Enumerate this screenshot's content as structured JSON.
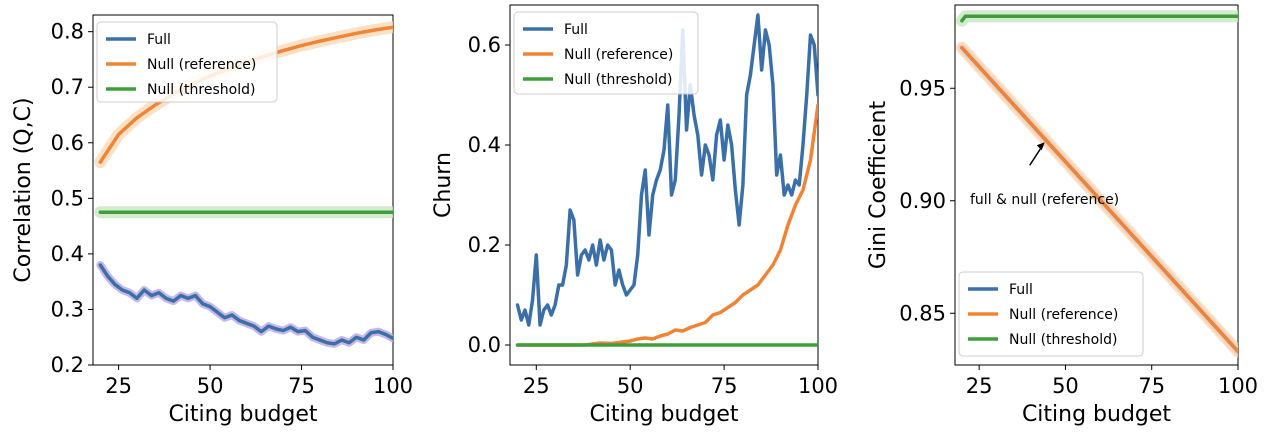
{
  "colors": {
    "full": "#3b6fa8",
    "null_reference": "#ef8436",
    "null_threshold": "#3f9e3b",
    "full_band": "#b9a6e2",
    "reference_band": "#f9d9b6",
    "threshold_band": "#c8e6c0"
  },
  "chart_data": [
    {
      "type": "line",
      "xlabel": "Citing budget",
      "ylabel": "Correlation (Q,C)",
      "xlim": [
        18,
        100
      ],
      "ylim": [
        0.2,
        0.83
      ],
      "xticks": [
        25,
        50,
        75,
        100
      ],
      "yticks": [
        0.2,
        0.3,
        0.4,
        0.5,
        0.6,
        0.7,
        0.8
      ],
      "ytick_labels": [
        "0.2",
        "0.3",
        "0.4",
        "0.5",
        "0.6",
        "0.7",
        "0.8"
      ],
      "grid": false,
      "legend_position": "upper-left",
      "series": [
        {
          "name": "Full",
          "key": "full",
          "band": true,
          "x": [
            20,
            22,
            24,
            26,
            28,
            30,
            32,
            34,
            36,
            38,
            40,
            42,
            44,
            46,
            48,
            50,
            52,
            54,
            56,
            58,
            60,
            62,
            64,
            66,
            68,
            70,
            72,
            74,
            76,
            78,
            80,
            82,
            84,
            86,
            88,
            90,
            92,
            94,
            96,
            98,
            100
          ],
          "y": [
            0.38,
            0.36,
            0.345,
            0.335,
            0.33,
            0.32,
            0.335,
            0.325,
            0.33,
            0.32,
            0.315,
            0.325,
            0.32,
            0.325,
            0.31,
            0.305,
            0.295,
            0.285,
            0.29,
            0.28,
            0.275,
            0.27,
            0.26,
            0.27,
            0.265,
            0.262,
            0.268,
            0.26,
            0.262,
            0.25,
            0.245,
            0.24,
            0.238,
            0.245,
            0.24,
            0.25,
            0.245,
            0.258,
            0.26,
            0.255,
            0.248
          ]
        },
        {
          "name": "Null (reference)",
          "key": "null_reference",
          "band": true,
          "x": [
            20,
            25,
            30,
            35,
            40,
            45,
            50,
            55,
            60,
            65,
            70,
            75,
            80,
            85,
            90,
            95,
            100
          ],
          "y": [
            0.565,
            0.615,
            0.645,
            0.668,
            0.688,
            0.705,
            0.72,
            0.733,
            0.745,
            0.756,
            0.766,
            0.775,
            0.783,
            0.79,
            0.797,
            0.803,
            0.808
          ]
        },
        {
          "name": "Null (threshold)",
          "key": "null_threshold",
          "band": true,
          "x": [
            20,
            100
          ],
          "y": [
            0.475,
            0.475
          ]
        }
      ]
    },
    {
      "type": "line",
      "xlabel": "Citing budget",
      "ylabel": "Churn",
      "xlim": [
        18,
        100
      ],
      "ylim": [
        -0.04,
        0.68
      ],
      "xticks": [
        25,
        50,
        75,
        100
      ],
      "yticks": [
        0.0,
        0.2,
        0.4,
        0.6
      ],
      "ytick_labels": [
        "0.0",
        "0.2",
        "0.4",
        "0.6"
      ],
      "grid": false,
      "legend_position": "upper-left",
      "series": [
        {
          "name": "Full",
          "key": "full",
          "band": false,
          "x": [
            20,
            21,
            22,
            23,
            24,
            25,
            26,
            27,
            28,
            29,
            30,
            31,
            32,
            33,
            34,
            35,
            36,
            37,
            38,
            39,
            40,
            41,
            42,
            43,
            44,
            45,
            46,
            47,
            48,
            49,
            50,
            51,
            52,
            53,
            54,
            55,
            56,
            57,
            58,
            59,
            60,
            61,
            62,
            63,
            64,
            65,
            66,
            67,
            68,
            69,
            70,
            71,
            72,
            73,
            74,
            75,
            76,
            77,
            78,
            79,
            80,
            81,
            82,
            83,
            84,
            85,
            86,
            87,
            88,
            89,
            90,
            91,
            92,
            93,
            94,
            95,
            96,
            97,
            98,
            99,
            100
          ],
          "y": [
            0.08,
            0.05,
            0.07,
            0.04,
            0.09,
            0.18,
            0.04,
            0.07,
            0.08,
            0.06,
            0.08,
            0.12,
            0.12,
            0.16,
            0.27,
            0.25,
            0.14,
            0.18,
            0.19,
            0.17,
            0.2,
            0.16,
            0.21,
            0.17,
            0.2,
            0.19,
            0.12,
            0.15,
            0.12,
            0.1,
            0.11,
            0.12,
            0.18,
            0.3,
            0.35,
            0.22,
            0.3,
            0.33,
            0.35,
            0.39,
            0.48,
            0.3,
            0.33,
            0.46,
            0.63,
            0.43,
            0.52,
            0.46,
            0.42,
            0.34,
            0.4,
            0.38,
            0.33,
            0.42,
            0.45,
            0.37,
            0.44,
            0.4,
            0.31,
            0.24,
            0.32,
            0.5,
            0.54,
            0.6,
            0.66,
            0.55,
            0.63,
            0.6,
            0.52,
            0.34,
            0.38,
            0.3,
            0.32,
            0.3,
            0.33,
            0.32,
            0.4,
            0.5,
            0.62,
            0.6,
            0.5
          ]
        },
        {
          "name": "Null (reference)",
          "key": "null_reference",
          "band": false,
          "x": [
            20,
            30,
            38,
            40,
            42,
            45,
            48,
            50,
            52,
            54,
            56,
            58,
            60,
            62,
            64,
            66,
            68,
            70,
            72,
            74,
            76,
            78,
            80,
            82,
            84,
            86,
            88,
            90,
            92,
            94,
            96,
            98,
            100
          ],
          "y": [
            0.0,
            0.0,
            0.0,
            0.002,
            0.004,
            0.003,
            0.006,
            0.008,
            0.012,
            0.014,
            0.012,
            0.018,
            0.022,
            0.03,
            0.028,
            0.035,
            0.04,
            0.045,
            0.06,
            0.065,
            0.075,
            0.085,
            0.1,
            0.11,
            0.12,
            0.14,
            0.16,
            0.19,
            0.24,
            0.28,
            0.31,
            0.37,
            0.48
          ]
        },
        {
          "name": "Null (threshold)",
          "key": "null_threshold",
          "band": false,
          "x": [
            20,
            100
          ],
          "y": [
            0.0,
            0.0
          ]
        }
      ]
    },
    {
      "type": "line",
      "xlabel": "Citing budget",
      "ylabel": "Gini Coefficient",
      "xlim": [
        18,
        100
      ],
      "ylim": [
        0.827,
        0.987
      ],
      "xticks": [
        25,
        50,
        75,
        100
      ],
      "yticks": [
        0.85,
        0.9,
        0.95
      ],
      "ytick_labels": [
        "0.85",
        "0.90",
        "0.95"
      ],
      "grid": false,
      "legend_position": "lower-left",
      "annotation": {
        "text": "full & null (reference)",
        "points_to_x": 44,
        "points_to_y": 0.926
      },
      "series": [
        {
          "name": "Full",
          "key": "full",
          "band": true,
          "x": [
            20,
            100
          ],
          "y": [
            0.968,
            0.833
          ]
        },
        {
          "name": "Null (reference)",
          "key": "null_reference",
          "band": true,
          "x": [
            20,
            100
          ],
          "y": [
            0.968,
            0.833
          ]
        },
        {
          "name": "Null (threshold)",
          "key": "null_threshold",
          "band": true,
          "x": [
            20,
            21,
            100
          ],
          "y": [
            0.98,
            0.982,
            0.982
          ]
        }
      ]
    }
  ]
}
